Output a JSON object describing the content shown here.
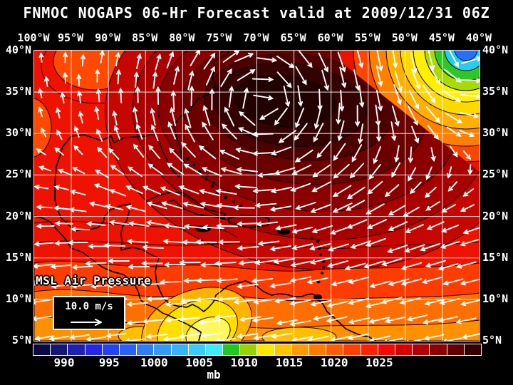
{
  "title": "FNMOC NOGAPS 06-Hr Forecast valid at 2009/12/31 06Z",
  "axes": {
    "lon_labels": [
      "100°W",
      "95°W",
      "90°W",
      "85°W",
      "80°W",
      "75°W",
      "70°W",
      "65°W",
      "60°W",
      "55°W",
      "50°W",
      "45°W",
      "40°W"
    ],
    "lat_labels": [
      "40°N",
      "35°N",
      "30°N",
      "25°N",
      "20°N",
      "15°N",
      "10°N",
      "5°N"
    ]
  },
  "overlay": {
    "field_label": "MSL Air Pressure",
    "wind_scale": "10.0 m/s"
  },
  "colorbar": {
    "unit": "mb",
    "tick_values": [
      990,
      995,
      1000,
      1005,
      1010,
      1015,
      1020,
      1025
    ],
    "min_mb": 986,
    "max_mb": 1038,
    "cell_step_mb": 2,
    "cell_colors": [
      "#0a0a40",
      "#15157a",
      "#1f1fb4",
      "#2626e8",
      "#2244f4",
      "#2a62f6",
      "#2f7ef8",
      "#339af9",
      "#37b3fa",
      "#3bcbfb",
      "#40e9fd",
      "#22c822",
      "#9ad400",
      "#ffe800",
      "#ffc400",
      "#ff9a00",
      "#ff7c00",
      "#ff5e00",
      "#ff4000",
      "#ff2200",
      "#f50800",
      "#d90000",
      "#b40000",
      "#8d0000",
      "#600000",
      "#330000"
    ]
  },
  "colors": {
    "background": "#000000",
    "title_text": "#ffffff",
    "map_base_red": "#ed1300",
    "grid_line": "#ffffff",
    "wind_arrow": "#ffffff",
    "coastline": "#000000"
  }
}
